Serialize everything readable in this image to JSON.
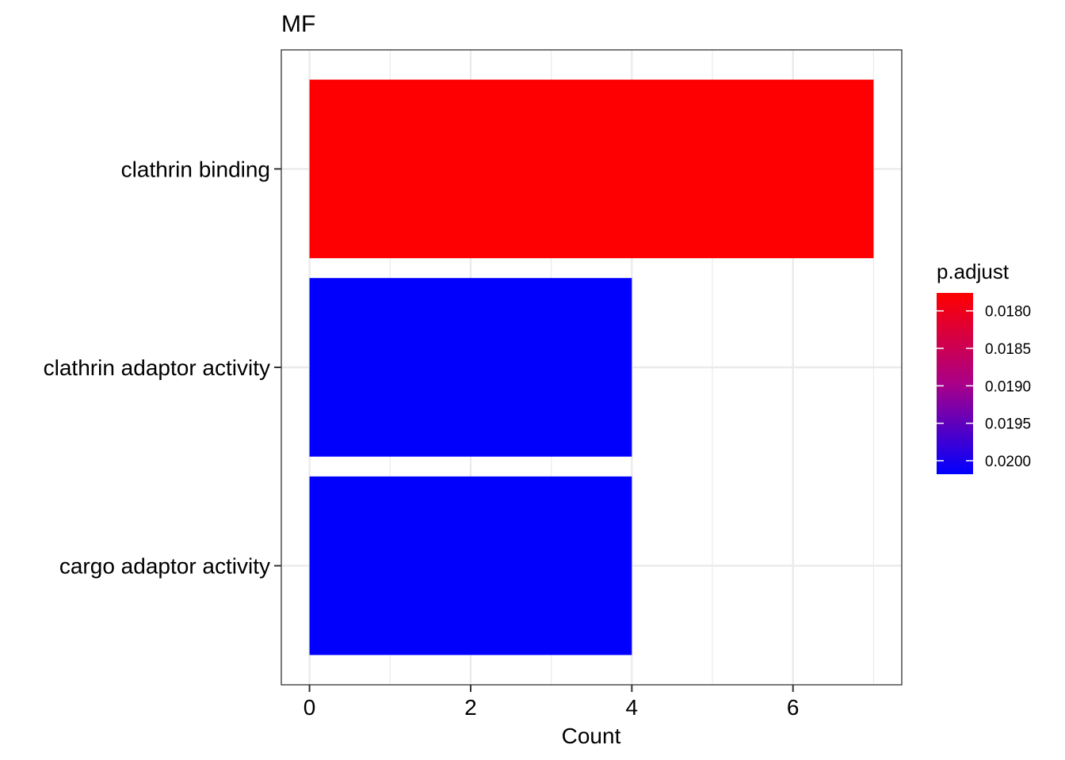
{
  "chart_data": {
    "type": "bar",
    "orientation": "horizontal",
    "title": "MF",
    "xlabel": "Count",
    "ylabel": "",
    "categories": [
      "clathrin binding",
      "clathrin adaptor activity",
      "cargo adaptor activity"
    ],
    "values": [
      7,
      4,
      4
    ],
    "p_adjust": [
      0.01777,
      0.02016,
      0.02016
    ],
    "xlim": [
      -0.35,
      7.35
    ],
    "x_ticks": [
      "0",
      "2",
      "4",
      "6"
    ],
    "grid": true,
    "legend": {
      "title": "p.adjust",
      "position": "right",
      "labels": [
        "0.0180",
        "0.0185",
        "0.0190",
        "0.0195",
        "0.0200"
      ],
      "values": [
        0.018,
        0.0185,
        0.019,
        0.0195,
        0.02
      ],
      "range": [
        0.01776,
        0.02018
      ],
      "color_low": "#FF0000",
      "color_high": "#0000FF"
    }
  }
}
